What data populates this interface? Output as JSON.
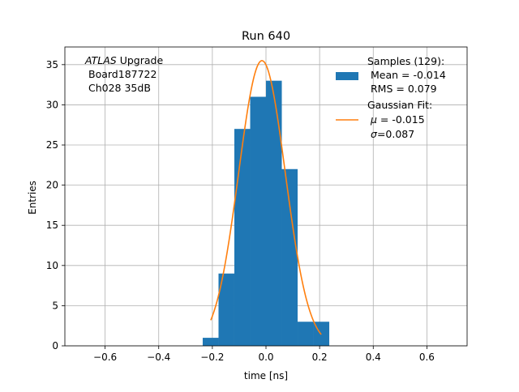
{
  "chart_data": {
    "type": "histogram",
    "title": "Run 640",
    "xlabel": "time [ns]",
    "ylabel": "Entries",
    "xlim": [
      -0.75,
      0.75
    ],
    "ylim": [
      0,
      37.2
    ],
    "xticks": [
      -0.6,
      -0.4,
      -0.2,
      0.0,
      0.2,
      0.4,
      0.6
    ],
    "xtick_labels": [
      "−0.6",
      "−0.4",
      "−0.2",
      "0.0",
      "0.2",
      "0.4",
      "0.6"
    ],
    "yticks": [
      0,
      5,
      10,
      15,
      20,
      25,
      30,
      35
    ],
    "ytick_labels": [
      "0",
      "5",
      "10",
      "15",
      "20",
      "25",
      "30",
      "35"
    ],
    "grid": true,
    "bins": [
      {
        "x0": -0.236,
        "x1": -0.177,
        "count": 1
      },
      {
        "x0": -0.177,
        "x1": -0.118,
        "count": 9
      },
      {
        "x0": -0.118,
        "x1": -0.059,
        "count": 27
      },
      {
        "x0": -0.059,
        "x1": 0.0,
        "count": 31
      },
      {
        "x0": 0.0,
        "x1": 0.059,
        "count": 33
      },
      {
        "x0": 0.059,
        "x1": 0.118,
        "count": 22
      },
      {
        "x0": 0.118,
        "x1": 0.177,
        "count": 3
      },
      {
        "x0": 0.177,
        "x1": 0.236,
        "count": 3
      }
    ],
    "bar_color": "#1f77b4",
    "fit": {
      "type": "gaussian",
      "mu": -0.015,
      "sigma": 0.087,
      "amplitude": 35.5,
      "x_range": [
        -0.206,
        0.206
      ],
      "color": "#ff7f0e"
    },
    "annotation": {
      "italic": "ATLAS",
      "rest": " Upgrade",
      "line2": "Board187722",
      "line3": "Ch028 35dB"
    },
    "legend": {
      "placement": "top-right",
      "samples_label": "Samples (129):",
      "samples_mean": "Mean = -0.014",
      "samples_rms": "RMS = 0.079",
      "fit_label": "Gaussian Fit:",
      "fit_mu_symbol": "μ",
      "fit_mu_value": " = -0.015",
      "fit_sigma_symbol": "σ",
      "fit_sigma_value": "=0.087"
    }
  }
}
